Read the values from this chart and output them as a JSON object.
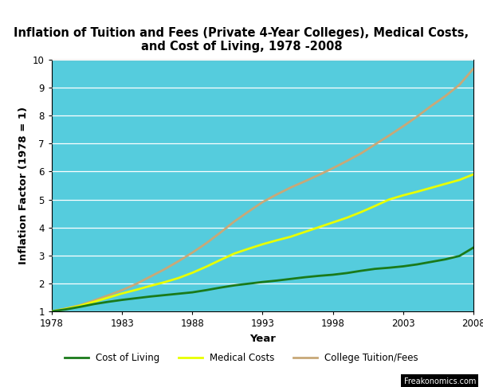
{
  "title": "Inflation of Tuition and Fees (Private 4-Year Colleges), Medical Costs,\nand Cost of Living, 1978 -2008",
  "xlabel": "Year",
  "ylabel": "Inflation Factor (1978 = 1)",
  "bg_color": "#55CCDD",
  "outer_bg_color": "#FFFFFF",
  "xlim": [
    1978,
    2008
  ],
  "ylim": [
    1,
    10
  ],
  "xticks": [
    1978,
    1983,
    1988,
    1993,
    1998,
    2003,
    2008
  ],
  "yticks": [
    1,
    2,
    3,
    4,
    5,
    6,
    7,
    8,
    9,
    10
  ],
  "years": [
    1978,
    1979,
    1980,
    1981,
    1982,
    1983,
    1984,
    1985,
    1986,
    1987,
    1988,
    1989,
    1990,
    1991,
    1992,
    1993,
    1994,
    1995,
    1996,
    1997,
    1998,
    1999,
    2000,
    2001,
    2002,
    2003,
    2004,
    2005,
    2006,
    2007,
    2008
  ],
  "cost_of_living": [
    1.0,
    1.07,
    1.16,
    1.26,
    1.34,
    1.41,
    1.47,
    1.53,
    1.58,
    1.63,
    1.68,
    1.76,
    1.85,
    1.93,
    1.99,
    2.05,
    2.1,
    2.16,
    2.22,
    2.27,
    2.31,
    2.37,
    2.45,
    2.52,
    2.56,
    2.61,
    2.68,
    2.77,
    2.86,
    2.98,
    3.28
  ],
  "medical_costs": [
    1.0,
    1.09,
    1.2,
    1.34,
    1.49,
    1.64,
    1.77,
    1.91,
    2.04,
    2.19,
    2.38,
    2.6,
    2.84,
    3.07,
    3.24,
    3.4,
    3.54,
    3.67,
    3.84,
    4.01,
    4.18,
    4.35,
    4.55,
    4.77,
    5.0,
    5.15,
    5.28,
    5.42,
    5.56,
    5.7,
    5.9
  ],
  "college_tuition": [
    1.0,
    1.1,
    1.22,
    1.39,
    1.57,
    1.76,
    1.98,
    2.24,
    2.5,
    2.79,
    3.1,
    3.44,
    3.82,
    4.22,
    4.57,
    4.91,
    5.18,
    5.43,
    5.65,
    5.88,
    6.12,
    6.38,
    6.65,
    6.97,
    7.29,
    7.62,
    7.97,
    8.35,
    8.7,
    9.1,
    9.68
  ],
  "line_color_col": "#1A7A1A",
  "line_color_med": "#E8FF00",
  "line_color_tui": "#C8A878",
  "line_width": 2.0,
  "legend_labels": [
    "Cost of Living",
    "Medical Costs",
    "College Tuition/Fees"
  ],
  "watermark": "Freakonomics.com",
  "title_fontsize": 10.5,
  "axis_label_fontsize": 9.5,
  "tick_fontsize": 8.5,
  "grid_color": "#AADDEE"
}
